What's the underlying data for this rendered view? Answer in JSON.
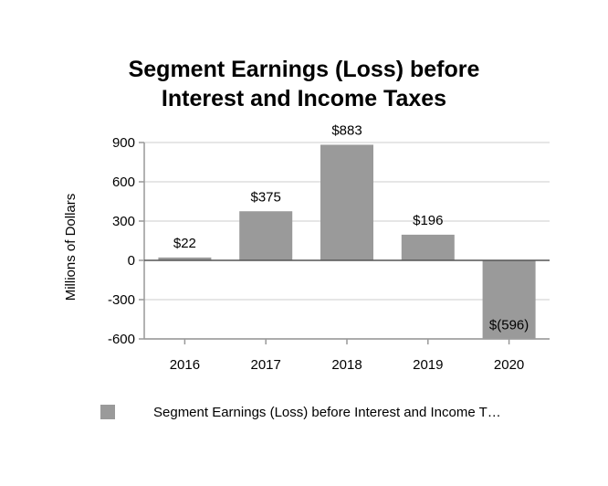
{
  "chart_data": {
    "type": "bar",
    "title_lines": [
      "Segment Earnings (Loss) before",
      "Interest and Income Taxes"
    ],
    "ylabel": "Millions of Dollars",
    "xlabel": "",
    "categories": [
      "2016",
      "2017",
      "2018",
      "2019",
      "2020"
    ],
    "values": [
      22,
      375,
      883,
      196,
      -596
    ],
    "data_labels": [
      "$22",
      "$375",
      "$883",
      "$196",
      "$(596)"
    ],
    "yticks": [
      900,
      600,
      300,
      0,
      -300,
      -600
    ],
    "ylim": [
      -600,
      900
    ],
    "grid": true,
    "legend": {
      "position": "bottom",
      "entries": [
        {
          "label": "Segment Earnings (Loss) before Interest and Income T…",
          "color": "#9a9a9a"
        }
      ]
    },
    "bar_color": "#9a9a9a"
  }
}
